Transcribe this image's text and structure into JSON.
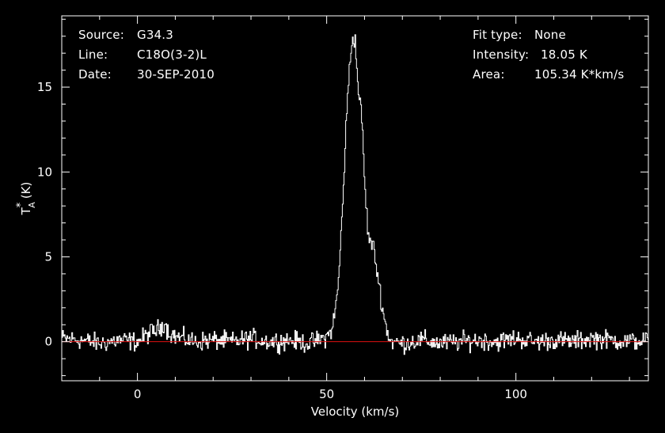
{
  "annotations": {
    "source_label": "Source:",
    "source_value": "G34.3",
    "line_label": "Line:",
    "line_value": "C18O(3-2)L",
    "date_label": "Date:",
    "date_value": "30-SEP-2010",
    "fit_label": "Fit type:",
    "fit_value": "None",
    "intensity_label": "Intensity:",
    "intensity_value": "18.05 K",
    "area_label": "Area:",
    "area_value": "105.34 K*km/s"
  },
  "chart_data": {
    "type": "line",
    "title": "",
    "xlabel": "Velocity (km/s)",
    "ylabel": "T*A (K)",
    "ylabel_main": "T",
    "ylabel_sup": "*",
    "ylabel_sub": "A",
    "ylabel_unit": "(K)",
    "xlim": [
      -20,
      135
    ],
    "ylim": [
      -2.3,
      19.2
    ],
    "xticks": [
      0,
      50,
      100
    ],
    "yticks": [
      0,
      5,
      10,
      15
    ],
    "xtick_labels": [
      "0",
      "50",
      "100"
    ],
    "ytick_labels": [
      "0",
      "5",
      "10",
      "15"
    ],
    "grid": false,
    "colors": {
      "background": "#000000",
      "spectrum": "#ffffff",
      "baseline": "#e01010",
      "axes": "#ffffff"
    },
    "baseline": {
      "y": 0
    },
    "series": [
      {
        "x": [
          -20,
          -15,
          -10,
          -5,
          0,
          3,
          6,
          7,
          8,
          10,
          15,
          20,
          25,
          30,
          35,
          40,
          45,
          48,
          50,
          51,
          52,
          53,
          54,
          55,
          56,
          56.5,
          57,
          57.5,
          58,
          59,
          59.5,
          60,
          61,
          62,
          63,
          64,
          65,
          66,
          67,
          70,
          75,
          80,
          85,
          90,
          95,
          100,
          105,
          110,
          115,
          120,
          125,
          130,
          135
        ],
        "values": [
          0.2,
          0.1,
          -0.1,
          0.1,
          0.0,
          0.5,
          0.8,
          1.2,
          0.6,
          0.3,
          0.0,
          0.1,
          0.0,
          0.2,
          0.0,
          0.1,
          -0.1,
          0.1,
          0.3,
          0.6,
          1.5,
          3.5,
          7.5,
          12.5,
          16.5,
          17.5,
          18.05,
          17.6,
          15.5,
          13.5,
          12.0,
          9.0,
          6.0,
          5.8,
          4.5,
          3.0,
          1.5,
          0.5,
          0.0,
          -0.1,
          0.1,
          -0.1,
          0.0,
          0.1,
          0.0,
          0.2,
          0.0,
          0.1,
          0.0,
          0.2,
          0.1,
          0.0,
          0.1
        ]
      }
    ]
  }
}
